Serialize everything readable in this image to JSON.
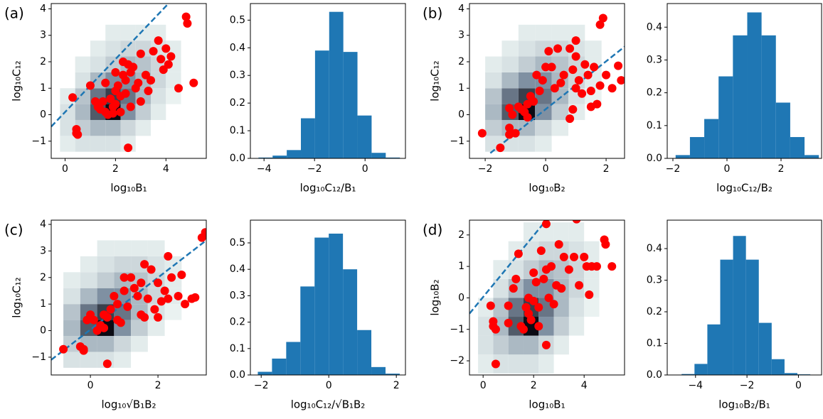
{
  "chart_data": [
    {
      "type": "scatter",
      "panel_label": "(a)",
      "xlabel": "log₁₀B₁",
      "ylabel": "log₁₀C₁₂",
      "xlim": [
        -0.55,
        5.6
      ],
      "ylim": [
        -1.65,
        4.2
      ],
      "xticks": [
        0,
        2,
        4
      ],
      "yticks": [
        {
          "value": -1,
          "label": "−1"
        },
        0,
        1,
        2,
        3,
        4
      ],
      "color": "#ff0000",
      "x": [
        0.3,
        0.45,
        0.45,
        0.5,
        1.0,
        1.2,
        1.3,
        1.4,
        1.5,
        1.6,
        1.7,
        1.8,
        1.9,
        2.0,
        2.0,
        2.1,
        2.2,
        2.3,
        2.3,
        2.4,
        2.4,
        2.5,
        2.5,
        2.6,
        2.6,
        2.7,
        2.8,
        2.9,
        3.0,
        3.0,
        3.2,
        3.4,
        3.5,
        3.7,
        3.8,
        3.9,
        4.0,
        4.1,
        4.5,
        4.8,
        4.85,
        5.1,
        1.6,
        2.0,
        3.3,
        4.2,
        1.9,
        2.2
      ],
      "values": [
        0.65,
        -0.55,
        -0.7,
        -0.75,
        1.1,
        0.5,
        0.3,
        0.2,
        0.5,
        0.1,
        0.0,
        0.6,
        0.3,
        0.4,
        0.9,
        1.1,
        0.7,
        1.5,
        2.0,
        1.3,
        0.8,
        1.9,
        -1.25,
        1.6,
        0.3,
        1.8,
        1.0,
        1.2,
        2.3,
        0.5,
        1.5,
        1.3,
        2.4,
        2.8,
        2.1,
        1.7,
        2.5,
        1.9,
        1.0,
        3.7,
        3.45,
        1.2,
        1.2,
        1.6,
        0.9,
        2.2,
        0.05,
        0.1
      ],
      "reference_line": {
        "x": [
          -0.55,
          4.1
        ],
        "y": [
          -0.45,
          4.2
        ],
        "color": "#1f77b4"
      },
      "density": {
        "colors": [
          "#eef6f4",
          "#7f90a2",
          "#0b0b14"
        ],
        "xbins": [
          -0.2,
          0.4,
          1.0,
          1.6,
          2.2,
          2.8,
          3.4,
          4.0,
          4.6
        ],
        "ybins": [
          -1.4,
          -0.8,
          -0.2,
          0.4,
          1.0,
          1.6,
          2.2,
          2.8,
          3.4
        ],
        "values": [
          [
            0.05,
            0.1,
            0.1,
            0.1,
            0.05,
            0,
            0,
            0
          ],
          [
            0.1,
            0.2,
            0.3,
            0.3,
            0.15,
            0.05,
            0,
            0
          ],
          [
            0.1,
            0.3,
            0.7,
            1.0,
            0.5,
            0.2,
            0.05,
            0
          ],
          [
            0.05,
            0.25,
            0.6,
            0.8,
            0.6,
            0.3,
            0.1,
            0.02
          ],
          [
            0,
            0.1,
            0.3,
            0.5,
            0.5,
            0.3,
            0.15,
            0.05
          ],
          [
            0,
            0.05,
            0.1,
            0.2,
            0.3,
            0.25,
            0.15,
            0.05
          ],
          [
            0,
            0,
            0.05,
            0.1,
            0.15,
            0.15,
            0.1,
            0.05
          ],
          [
            0,
            0,
            0,
            0.05,
            0.05,
            0.05,
            0.05,
            0
          ]
        ]
      }
    },
    {
      "type": "histogram",
      "xlabel": "log₁₀C₁₂/B₁",
      "color": "#1f77b4",
      "xlim": [
        -4.54,
        1.6
      ],
      "ylim": [
        0,
        0.56
      ],
      "xticks": [
        {
          "value": -4,
          "label": "−4"
        },
        {
          "value": -2,
          "label": "−2"
        },
        0
      ],
      "yticks": [
        {
          "value": 0,
          "label": "0.0"
        },
        0.1,
        0.2,
        0.3,
        0.4,
        0.5
      ],
      "bins": [
        -4.22,
        -3.66,
        -3.1,
        -2.54,
        -1.98,
        -1.42,
        -0.86,
        -0.3,
        0.26,
        0.82,
        1.38
      ],
      "values": [
        0.003,
        0.01,
        0.03,
        0.145,
        0.39,
        0.53,
        0.385,
        0.155,
        0.02,
        0.003
      ]
    },
    {
      "type": "scatter",
      "panel_label": "(b)",
      "xlabel": "log₁₀B₂",
      "ylabel": "log₁₀C₁₂",
      "xlim": [
        -2.52,
        2.61
      ],
      "ylim": [
        -1.65,
        4.2
      ],
      "xticks": [
        {
          "value": -2,
          "label": "−2"
        },
        0,
        2
      ],
      "yticks": [
        {
          "value": -1,
          "label": "−1"
        },
        0,
        1,
        2,
        3,
        4
      ],
      "color": "#ff0000",
      "x": [
        -2.1,
        -1.5,
        -1.2,
        -1.2,
        -1.0,
        -1.2,
        -1.1,
        -0.9,
        -0.8,
        -0.7,
        -0.6,
        -0.5,
        -0.4,
        -0.6,
        -0.3,
        -0.1,
        0,
        0.1,
        0.4,
        0.3,
        0.5,
        0.6,
        0.8,
        0.9,
        1.0,
        1.0,
        1.0,
        1.1,
        1.2,
        1.3,
        1.4,
        1.5,
        1.6,
        1.7,
        1.8,
        1.8,
        1.9,
        2.0,
        2.2,
        2.4,
        2.5,
        0.9,
        0.8,
        1.5,
        -0.2,
        0.2
      ],
      "values": [
        -0.7,
        -1.25,
        -0.5,
        -0.75,
        -0.7,
        0.25,
        0.0,
        0.3,
        0.2,
        0.1,
        0.4,
        0.7,
        0.5,
        -0.1,
        1.5,
        1.3,
        1.8,
        2.4,
        2.5,
        1.0,
        1.2,
        1.5,
        2.5,
        1.7,
        2.2,
        1.0,
        2.8,
        1.3,
        0.8,
        1.9,
        1.5,
        0.9,
        1.8,
        0.4,
        1.1,
        3.4,
        3.65,
        1.5,
        1.0,
        1.85,
        1.3,
        0.2,
        -0.15,
        0.3,
        0.9,
        1.8
      ],
      "reference_line": {
        "x": [
          -1.83,
          2.61
        ],
        "y": [
          -1.45,
          2.57
        ],
        "color": "#1f77b4"
      },
      "density": {
        "colors": [
          "#eef6f4",
          "#7f90a2",
          "#0b0b14"
        ],
        "xbins": [
          -2.0,
          -1.45,
          -0.9,
          -0.35,
          0.2,
          0.75,
          1.3,
          1.85,
          2.4
        ],
        "ybins": [
          -1.4,
          -0.8,
          -0.2,
          0.4,
          1.0,
          1.6,
          2.2,
          2.8,
          3.4
        ],
        "values": [
          [
            0.1,
            0.1,
            0.1,
            0.05,
            0,
            0,
            0,
            0
          ],
          [
            0.2,
            0.3,
            0.3,
            0.15,
            0.05,
            0,
            0,
            0
          ],
          [
            0.3,
            0.7,
            1.0,
            0.5,
            0.2,
            0.05,
            0,
            0
          ],
          [
            0.25,
            0.6,
            0.8,
            0.6,
            0.3,
            0.1,
            0.02,
            0
          ],
          [
            0.1,
            0.3,
            0.5,
            0.5,
            0.3,
            0.15,
            0.05,
            0
          ],
          [
            0.05,
            0.1,
            0.2,
            0.3,
            0.25,
            0.15,
            0.05,
            0
          ],
          [
            0,
            0.05,
            0.1,
            0.15,
            0.15,
            0.1,
            0.05,
            0
          ],
          [
            0,
            0,
            0.05,
            0.05,
            0.05,
            0.05,
            0,
            0
          ]
        ]
      }
    },
    {
      "type": "histogram",
      "xlabel": "log₁₀C₁₂/B₂",
      "color": "#1f77b4",
      "xlim": [
        -2.21,
        3.5
      ],
      "ylim": [
        0,
        0.472
      ],
      "xticks": [
        {
          "value": -2,
          "label": "−2"
        },
        0,
        2
      ],
      "yticks": [
        {
          "value": 0,
          "label": "0.0"
        },
        0.1,
        0.2,
        0.3,
        0.4
      ],
      "bins": [
        -1.9,
        -1.37,
        -0.84,
        -0.31,
        0.22,
        0.75,
        1.28,
        1.81,
        2.34,
        2.87,
        3.4
      ],
      "values": [
        0.01,
        0.065,
        0.12,
        0.25,
        0.375,
        0.445,
        0.375,
        0.17,
        0.065,
        0.01
      ]
    },
    {
      "type": "scatter",
      "panel_label": "(c)",
      "xlabel": "log₁₀√B₁B₂",
      "ylabel": "log₁₀C₁₂",
      "xlim": [
        -1.16,
        3.43
      ],
      "ylim": [
        -1.67,
        4.16
      ],
      "xticks": [
        0,
        2
      ],
      "yticks": [
        {
          "value": -1,
          "label": "−1"
        },
        0,
        1,
        2,
        3,
        4
      ],
      "color": "#ff0000",
      "x": [
        -0.8,
        -0.3,
        -0.2,
        -0.2,
        -0.1,
        0.0,
        0.1,
        0.2,
        0.3,
        0.4,
        0.5,
        0.5,
        0.6,
        0.7,
        0.8,
        0.9,
        1.0,
        1.0,
        1.1,
        1.2,
        1.3,
        1.4,
        1.5,
        1.5,
        1.6,
        1.7,
        1.8,
        1.9,
        2.0,
        2.1,
        2.2,
        2.3,
        2.3,
        2.4,
        2.6,
        2.7,
        2.8,
        3.0,
        3.1,
        3.3,
        3.4,
        0.8,
        1.6,
        0.4,
        2.0
      ],
      "values": [
        -0.7,
        -0.6,
        -0.7,
        -0.75,
        0.4,
        0.6,
        0.4,
        0.0,
        0.2,
        0.1,
        -1.25,
        0.5,
        0.8,
        1.3,
        1.0,
        0.3,
        2.0,
        1.5,
        0.9,
        2.0,
        1.6,
        1.3,
        1.8,
        0.6,
        2.5,
        1.2,
        2.3,
        0.8,
        1.8,
        1.1,
        1.5,
        2.8,
        1.2,
        2.0,
        1.3,
        2.1,
        1.0,
        1.2,
        1.25,
        3.5,
        3.7,
        0.4,
        0.5,
        0.6,
        0.5
      ],
      "reference_line": {
        "x": [
          -1.16,
          3.43
        ],
        "y": [
          -1.1,
          3.4
        ],
        "color": "#1f77b4"
      },
      "density": {
        "colors": [
          "#eef6f4",
          "#7f90a2",
          "#0b0b14"
        ],
        "xbins": [
          -0.8,
          -0.3,
          0.2,
          0.7,
          1.2,
          1.7,
          2.2,
          2.7,
          3.2
        ],
        "ybins": [
          -1.4,
          -0.8,
          -0.2,
          0.4,
          1.0,
          1.6,
          2.2,
          2.8,
          3.4
        ],
        "values": [
          [
            0.1,
            0.1,
            0.1,
            0.05,
            0,
            0,
            0,
            0
          ],
          [
            0.2,
            0.3,
            0.3,
            0.15,
            0.05,
            0,
            0,
            0
          ],
          [
            0.3,
            0.7,
            1.0,
            0.5,
            0.2,
            0.05,
            0,
            0
          ],
          [
            0.25,
            0.6,
            0.8,
            0.6,
            0.3,
            0.1,
            0.02,
            0
          ],
          [
            0.1,
            0.3,
            0.5,
            0.5,
            0.3,
            0.15,
            0.05,
            0
          ],
          [
            0.05,
            0.1,
            0.2,
            0.3,
            0.25,
            0.15,
            0.05,
            0
          ],
          [
            0,
            0.05,
            0.1,
            0.15,
            0.15,
            0.1,
            0.05,
            0
          ],
          [
            0,
            0,
            0.05,
            0.05,
            0.05,
            0.05,
            0,
            0
          ]
        ]
      }
    },
    {
      "type": "histogram",
      "xlabel": "log₁₀C₁₂/√B₁B₂",
      "color": "#1f77b4",
      "xlim": [
        -2.32,
        2.27
      ],
      "ylim": [
        0,
        0.586
      ],
      "xticks": [
        {
          "value": -2,
          "label": "−2"
        },
        0,
        2
      ],
      "yticks": [
        {
          "value": 0,
          "label": "0.0"
        },
        0.1,
        0.2,
        0.3,
        0.4,
        0.5
      ],
      "bins": [
        -2.1,
        -1.68,
        -1.26,
        -0.84,
        -0.42,
        0,
        0.42,
        0.84,
        1.26,
        1.68,
        2.1
      ],
      "values": [
        0.012,
        0.062,
        0.125,
        0.335,
        0.52,
        0.535,
        0.4,
        0.17,
        0.03,
        0.005
      ]
    },
    {
      "type": "scatter",
      "panel_label": "(d)",
      "xlabel": "log₁₀B₁",
      "ylabel": "log₁₀B₂",
      "xlim": [
        -0.54,
        5.6
      ],
      "ylim": [
        -2.45,
        2.47
      ],
      "xticks": [
        0,
        2,
        4
      ],
      "yticks": [
        {
          "value": -2,
          "label": "−2"
        },
        {
          "value": -1,
          "label": "−1"
        },
        0,
        1,
        2
      ],
      "color": "#ff0000",
      "x": [
        0.4,
        0.4,
        0.5,
        0.5,
        0.3,
        1.0,
        1.0,
        1.2,
        1.3,
        1.4,
        1.5,
        1.6,
        1.7,
        1.8,
        1.9,
        2.0,
        2.0,
        2.1,
        2.2,
        2.3,
        2.4,
        2.5,
        2.5,
        2.5,
        2.6,
        2.7,
        2.8,
        2.9,
        3.0,
        3.1,
        3.2,
        3.4,
        3.6,
        3.7,
        3.8,
        4.0,
        4.1,
        4.2,
        4.3,
        4.5,
        4.8,
        4.85,
        5.1,
        1.8,
        2.2
      ],
      "values": [
        -0.75,
        -0.9,
        -1.0,
        -2.1,
        -0.25,
        -0.25,
        -0.8,
        0.3,
        0.6,
        1.4,
        -0.9,
        -1.0,
        -0.3,
        -0.5,
        -0.7,
        -0.1,
        0.8,
        0.5,
        -0.3,
        1.5,
        0.6,
        2.35,
        0.9,
        -1.5,
        0.0,
        1.0,
        -0.2,
        0.4,
        1.7,
        0.3,
        1.3,
        0.9,
        1.3,
        2.5,
        0.4,
        1.3,
        1.0,
        0.1,
        1.0,
        1.0,
        1.85,
        1.7,
        1.0,
        0.0,
        -0.9
      ],
      "reference_line": {
        "x": [
          -0.54,
          2.5
        ],
        "y": [
          -0.5,
          2.47
        ],
        "color": "#1f77b4"
      },
      "density": {
        "colors": [
          "#eef6f4",
          "#7f90a2",
          "#0b0b14"
        ],
        "xbins": [
          -0.2,
          0.4,
          1.0,
          1.6,
          2.2,
          2.8,
          3.4,
          4.0,
          4.6
        ],
        "ybins": [
          -2.4,
          -1.8,
          -1.2,
          -0.6,
          0,
          0.6,
          1.2,
          1.8,
          2.4
        ],
        "values": [
          [
            0.05,
            0.1,
            0.1,
            0.1,
            0.05,
            0,
            0,
            0
          ],
          [
            0.1,
            0.2,
            0.3,
            0.3,
            0.15,
            0.05,
            0,
            0
          ],
          [
            0.1,
            0.3,
            0.7,
            1.0,
            0.5,
            0.2,
            0.05,
            0
          ],
          [
            0.05,
            0.25,
            0.6,
            0.8,
            0.6,
            0.3,
            0.1,
            0.02
          ],
          [
            0,
            0.1,
            0.3,
            0.5,
            0.5,
            0.3,
            0.15,
            0.05
          ],
          [
            0,
            0.05,
            0.1,
            0.2,
            0.3,
            0.25,
            0.15,
            0.05
          ],
          [
            0,
            0,
            0.05,
            0.1,
            0.15,
            0.15,
            0.1,
            0.05
          ],
          [
            0,
            0,
            0,
            0.05,
            0.05,
            0.05,
            0.05,
            0
          ]
        ]
      }
    },
    {
      "type": "histogram",
      "xlabel": "log₁₀B₂/B₁",
      "color": "#1f77b4",
      "xlim": [
        -5.1,
        0.9
      ],
      "ylim": [
        0,
        0.49
      ],
      "xticks": [
        {
          "value": -4,
          "label": "−4"
        },
        {
          "value": -2,
          "label": "−2"
        },
        0
      ],
      "yticks": [
        {
          "value": 0,
          "label": "0.0"
        },
        0.1,
        0.2,
        0.3,
        0.4
      ],
      "bins": [
        -4.54,
        -4.04,
        -3.54,
        -3.04,
        -2.54,
        -2.04,
        -1.54,
        -1.04,
        -0.54,
        -0.04,
        0.46
      ],
      "values": [
        0.003,
        0.035,
        0.16,
        0.365,
        0.44,
        0.365,
        0.165,
        0.05,
        0.006,
        0.002
      ]
    }
  ]
}
